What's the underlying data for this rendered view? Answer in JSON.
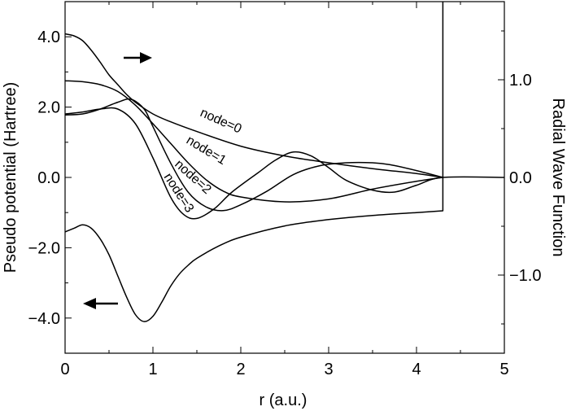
{
  "chart_data": {
    "type": "line",
    "xlabel": "r (a.u.)",
    "ylabel_left": "Pseudo potential (Hartree)",
    "ylabel_right": "Radial Wave Function",
    "xlim": [
      0,
      5
    ],
    "ylim_left": [
      -5,
      5
    ],
    "ylim_right": [
      -1.8,
      1.8
    ],
    "x_ticks": [
      "0",
      "1",
      "2",
      "3",
      "4",
      "5"
    ],
    "y_left_ticks": [
      "4.0",
      "2.0",
      "0.0",
      "−2.0",
      "−4.0"
    ],
    "y_right_ticks": [
      "1.0",
      "0.0",
      "−1.0"
    ],
    "grid": false,
    "cutoff_radius": 4.3,
    "series": [
      {
        "name": "Pseudo potential",
        "axis": "left",
        "points": [
          [
            0,
            -1.55
          ],
          [
            0.1,
            -1.45
          ],
          [
            0.2,
            -1.35
          ],
          [
            0.3,
            -1.45
          ],
          [
            0.4,
            -1.75
          ],
          [
            0.5,
            -2.2
          ],
          [
            0.6,
            -2.8
          ],
          [
            0.7,
            -3.4
          ],
          [
            0.8,
            -3.9
          ],
          [
            0.9,
            -4.1
          ],
          [
            1.0,
            -3.95
          ],
          [
            1.1,
            -3.55
          ],
          [
            1.2,
            -3.1
          ],
          [
            1.3,
            -2.75
          ],
          [
            1.4,
            -2.5
          ],
          [
            1.5,
            -2.3
          ],
          [
            1.75,
            -1.95
          ],
          [
            2.0,
            -1.7
          ],
          [
            2.5,
            -1.38
          ],
          [
            3.0,
            -1.2
          ],
          [
            3.5,
            -1.08
          ],
          [
            4.0,
            -1.0
          ],
          [
            4.3,
            -0.95
          ],
          [
            4.3,
            5.0
          ]
        ]
      },
      {
        "name": "node=0",
        "axis": "right",
        "points": [
          [
            0,
            1.47
          ],
          [
            0.1,
            1.45
          ],
          [
            0.2,
            1.4
          ],
          [
            0.3,
            1.3
          ],
          [
            0.4,
            1.18
          ],
          [
            0.5,
            1.05
          ],
          [
            0.6,
            0.95
          ],
          [
            0.7,
            0.85
          ],
          [
            0.8,
            0.77
          ],
          [
            1.0,
            0.65
          ],
          [
            1.2,
            0.57
          ],
          [
            1.5,
            0.47
          ],
          [
            2.0,
            0.32
          ],
          [
            2.5,
            0.22
          ],
          [
            3.0,
            0.15
          ],
          [
            3.5,
            0.09
          ],
          [
            4.0,
            0.04
          ],
          [
            4.3,
            0.0
          ]
        ]
      },
      {
        "name": "node=1",
        "axis": "right",
        "points": [
          [
            0,
            0.99
          ],
          [
            0.2,
            0.98
          ],
          [
            0.4,
            0.95
          ],
          [
            0.6,
            0.88
          ],
          [
            0.8,
            0.74
          ],
          [
            1.0,
            0.55
          ],
          [
            1.2,
            0.35
          ],
          [
            1.4,
            0.15
          ],
          [
            1.6,
            -0.02
          ],
          [
            1.8,
            -0.14
          ],
          [
            2.0,
            -0.2
          ],
          [
            2.5,
            -0.25
          ],
          [
            3.0,
            -0.22
          ],
          [
            3.5,
            -0.12
          ],
          [
            4.0,
            -0.04
          ],
          [
            4.3,
            0.0
          ]
        ]
      },
      {
        "name": "node=2",
        "axis": "right",
        "points": [
          [
            0,
            0.64
          ],
          [
            0.2,
            0.65
          ],
          [
            0.4,
            0.7
          ],
          [
            0.6,
            0.77
          ],
          [
            0.75,
            0.8
          ],
          [
            0.9,
            0.7
          ],
          [
            1.0,
            0.52
          ],
          [
            1.2,
            0.15
          ],
          [
            1.4,
            -0.15
          ],
          [
            1.6,
            -0.3
          ],
          [
            1.8,
            -0.34
          ],
          [
            2.0,
            -0.28
          ],
          [
            2.3,
            -0.14
          ],
          [
            2.6,
            0.03
          ],
          [
            2.9,
            0.12
          ],
          [
            3.2,
            0.15
          ],
          [
            3.5,
            0.15
          ],
          [
            3.7,
            0.13
          ],
          [
            4.0,
            0.07
          ],
          [
            4.3,
            0.0
          ]
        ]
      },
      {
        "name": "node=3",
        "axis": "right",
        "points": [
          [
            0,
            0.65
          ],
          [
            0.2,
            0.67
          ],
          [
            0.4,
            0.7
          ],
          [
            0.6,
            0.7
          ],
          [
            0.8,
            0.55
          ],
          [
            1.0,
            0.2
          ],
          [
            1.2,
            -0.2
          ],
          [
            1.35,
            -0.38
          ],
          [
            1.5,
            -0.42
          ],
          [
            1.7,
            -0.32
          ],
          [
            1.9,
            -0.15
          ],
          [
            2.2,
            0.05
          ],
          [
            2.4,
            0.18
          ],
          [
            2.6,
            0.26
          ],
          [
            2.8,
            0.22
          ],
          [
            3.0,
            0.1
          ],
          [
            3.2,
            -0.03
          ],
          [
            3.5,
            -0.13
          ],
          [
            3.75,
            -0.15
          ],
          [
            4.0,
            -0.08
          ],
          [
            4.3,
            0.0
          ],
          [
            5.0,
            0.0
          ]
        ]
      }
    ],
    "annotations": [
      {
        "text": "node=0",
        "series": "node=0"
      },
      {
        "text": "node=1",
        "series": "node=1"
      },
      {
        "text": "node=2",
        "series": "node=2"
      },
      {
        "text": "node=3",
        "series": "node=3"
      },
      {
        "text": "→",
        "meaning": "wave functions use right axis"
      },
      {
        "text": "←",
        "meaning": "pseudo potential uses left axis"
      }
    ]
  }
}
